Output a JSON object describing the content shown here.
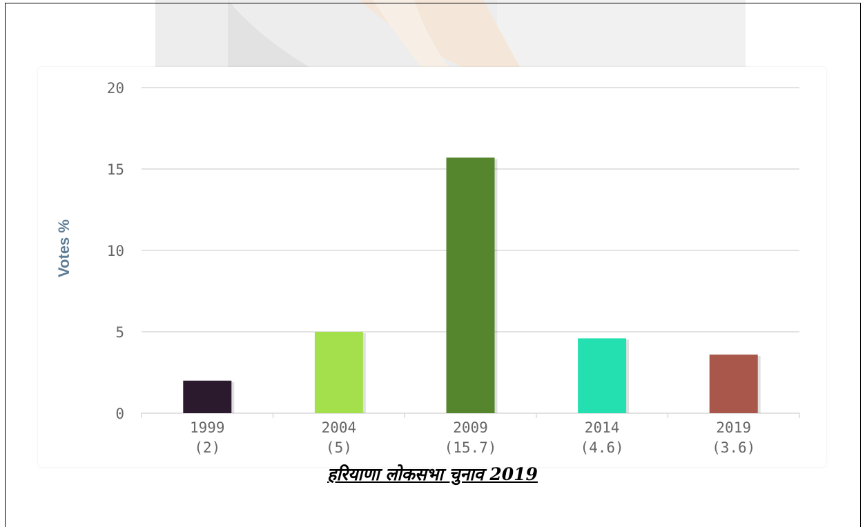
{
  "chart_data": {
    "type": "bar",
    "title": "",
    "ylabel": "Votes %",
    "xlabel": "",
    "ylim": [
      0,
      20
    ],
    "yticks": [
      0,
      5,
      10,
      15,
      20
    ],
    "grid": true,
    "categories": [
      "1999",
      "2004",
      "2009",
      "2014",
      "2019"
    ],
    "value_labels": [
      "(2)",
      "(5)",
      "(15.7)",
      "(4.6)",
      "(3.6)"
    ],
    "values": [
      2,
      5,
      15.7,
      4.6,
      3.6
    ],
    "colors": [
      "#2b1a2e",
      "#a3e04c",
      "#55862d",
      "#24e0b0",
      "#a9574a"
    ]
  },
  "caption": "हरियाणा लोकसभा चुनाव 2019",
  "colors": {
    "gridline": "#d9d9d9",
    "tick_text": "#666666",
    "ylabel_text": "#5f7d95"
  }
}
